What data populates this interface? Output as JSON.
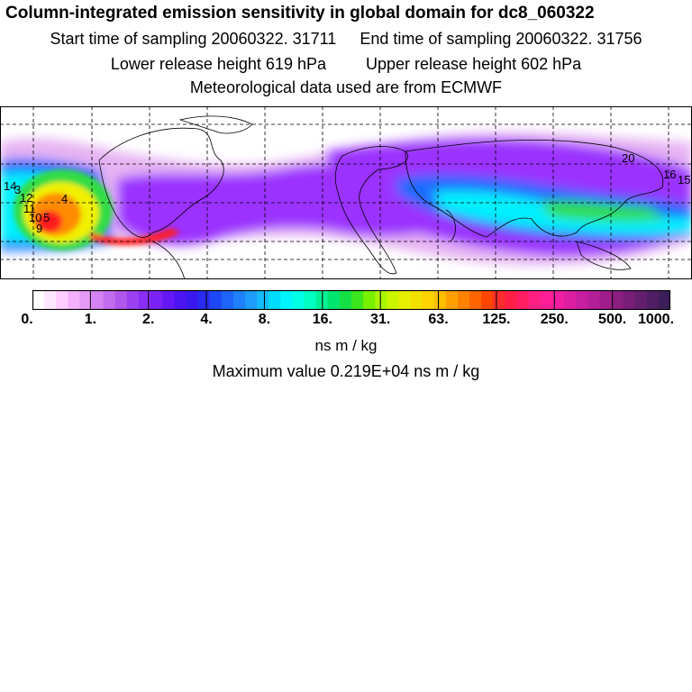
{
  "header": {
    "title": "Column-integrated emission sensitivity in global domain for dc8_060322",
    "start_label": "Start time of sampling 20060322. 31711",
    "end_label": "End time of sampling 20060322. 31756",
    "lower_label": "Lower release height  619 hPa",
    "upper_label": "Upper release height  602 hPa",
    "met_label": "Meteorological data used are from ECMWF"
  },
  "map": {
    "contour_labels": [
      "14",
      "3",
      "12",
      "4",
      "11",
      "10",
      "5",
      "9",
      "20",
      "16",
      "15"
    ],
    "colors": {
      "low": "#e6b3f2",
      "purple": "#9b30ff",
      "blue": "#1e6bff",
      "cyan": "#00f0ff",
      "green": "#33dd44",
      "yellow": "#f0f000",
      "orange": "#ff8c00",
      "red": "#ff1a1a"
    }
  },
  "colorbar": {
    "ticks": [
      "0.",
      "1.",
      "2.",
      "4.",
      "8.",
      "16.",
      "31.",
      "63.",
      "125.",
      "250.",
      "500.",
      "1000."
    ],
    "colors": [
      "#ffffff",
      "#ffe6ff",
      "#ffccff",
      "#f5b0fb",
      "#e69af7",
      "#d483f4",
      "#c26df0",
      "#b056ed",
      "#9b3ff2",
      "#8a2df7",
      "#7a22f8",
      "#6418f5",
      "#4c14f2",
      "#3a18f0",
      "#2a2af0",
      "#1e48f5",
      "#1e64f8",
      "#1e80fb",
      "#1e9cfd",
      "#14bcfe",
      "#00dcff",
      "#00f4ff",
      "#00ffe6",
      "#00ffc0",
      "#00f096",
      "#00e66e",
      "#14e046",
      "#3ce61e",
      "#78f000",
      "#a8f500",
      "#ccf500",
      "#e6f000",
      "#f5e100",
      "#ffd200",
      "#ffbe00",
      "#ffa000",
      "#ff8200",
      "#ff6400",
      "#ff4600",
      "#ff2d2d",
      "#ff1e46",
      "#ff1e64",
      "#ff1e82",
      "#ff1e96",
      "#f01ea0",
      "#dc1ea0",
      "#c81ea0",
      "#b41e96",
      "#a01e8c",
      "#8c1e82",
      "#781e78",
      "#641e6e",
      "#501e64",
      "#3c1e5a"
    ]
  },
  "units": "ns m / kg",
  "max_value": "Maximum value  0.219E+04 ns m / kg"
}
